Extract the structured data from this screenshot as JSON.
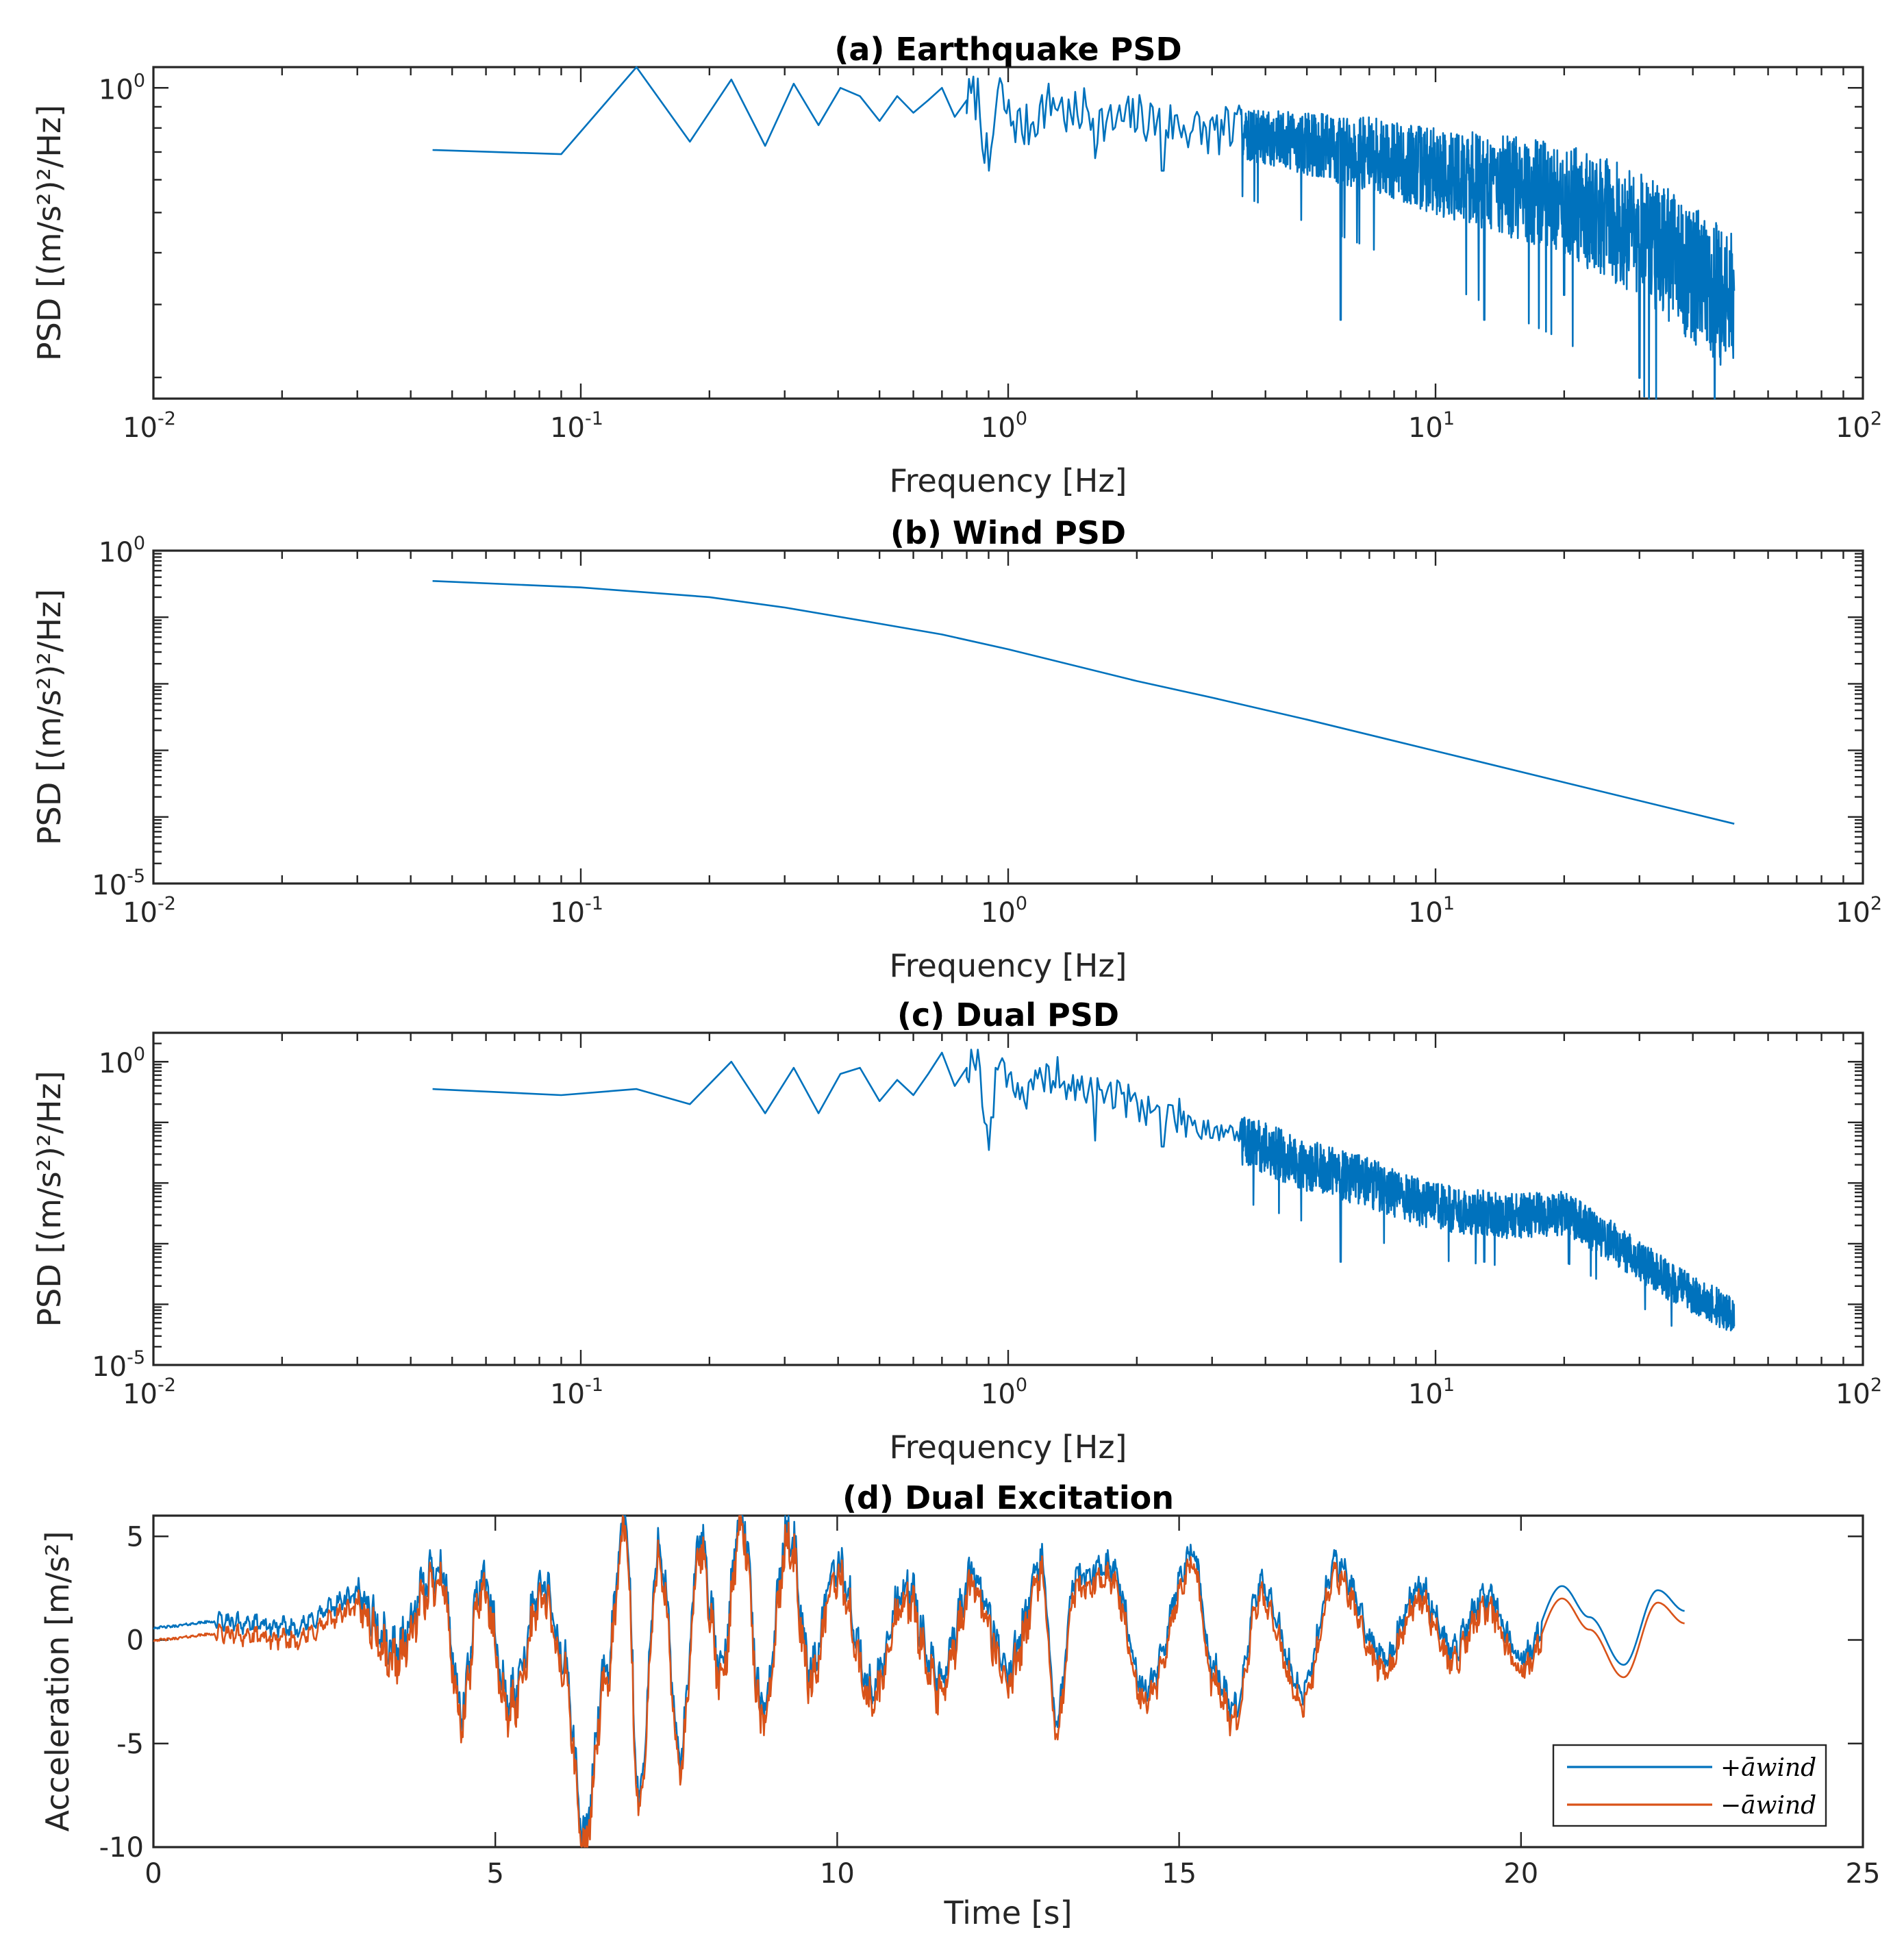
{
  "figure": {
    "panels": [
      {
        "id": "a",
        "title": "(a) Earthquake PSD",
        "xlabel": "Frequency [Hz]",
        "ylabel": "PSD [(m/s²)²/Hz]",
        "xscale": "log",
        "yscale": "log",
        "x_tick_labels": [
          {
            "base": "10",
            "exp": "-2"
          },
          {
            "base": "10",
            "exp": "-1"
          },
          {
            "base": "10",
            "exp": "0"
          },
          {
            "base": "10",
            "exp": "1"
          },
          {
            "base": "10",
            "exp": "2"
          }
        ],
        "y_tick_labels": [
          {
            "base": "10",
            "exp": "0"
          }
        ]
      },
      {
        "id": "b",
        "title": "(b) Wind PSD",
        "xlabel": "Frequency [Hz]",
        "ylabel": "PSD [(m/s²)²/Hz]",
        "xscale": "log",
        "yscale": "log",
        "x_tick_labels": [
          {
            "base": "10",
            "exp": "-2"
          },
          {
            "base": "10",
            "exp": "-1"
          },
          {
            "base": "10",
            "exp": "0"
          },
          {
            "base": "10",
            "exp": "1"
          },
          {
            "base": "10",
            "exp": "2"
          }
        ],
        "y_tick_labels": [
          {
            "base": "10",
            "exp": "0"
          },
          {
            "base": "10",
            "exp": "-5"
          }
        ]
      },
      {
        "id": "c",
        "title": "(c) Dual PSD",
        "xlabel": "Frequency [Hz]",
        "ylabel": "PSD [(m/s²)²/Hz]",
        "xscale": "log",
        "yscale": "log",
        "x_tick_labels": [
          {
            "base": "10",
            "exp": "-2"
          },
          {
            "base": "10",
            "exp": "-1"
          },
          {
            "base": "10",
            "exp": "0"
          },
          {
            "base": "10",
            "exp": "1"
          },
          {
            "base": "10",
            "exp": "2"
          }
        ],
        "y_tick_labels": [
          {
            "base": "10",
            "exp": "0"
          },
          {
            "base": "10",
            "exp": "-5"
          }
        ]
      },
      {
        "id": "d",
        "title": "(d) Dual Excitation",
        "xlabel": "Time [s]",
        "ylabel": "Acceleration [m/s²]",
        "x_tick_labels": [
          "0",
          "5",
          "10",
          "15",
          "20",
          "25"
        ],
        "y_tick_labels": [
          "5",
          "0",
          "-5",
          "-10"
        ],
        "legend": [
          "+āwind",
          "−āwind"
        ]
      }
    ]
  },
  "chart_data": [
    {
      "type": "line",
      "title": "(a) Earthquake PSD",
      "xlabel": "Frequency [Hz]",
      "ylabel": "PSD [(m/s²)²/Hz]",
      "xscale": "log",
      "yscale": "log",
      "xlim": [
        0.01,
        100
      ],
      "ylim_exp": [
        -0.75,
        0.05
      ],
      "grid": false,
      "series": [
        {
          "color": "#0072BD",
          "points": [
            [
              0.045,
              -0.15
            ],
            [
              0.09,
              -0.16
            ],
            [
              0.135,
              0.05
            ],
            [
              0.18,
              -0.13
            ],
            [
              0.225,
              0.02
            ],
            [
              0.27,
              -0.14
            ],
            [
              0.315,
              0.01
            ],
            [
              0.36,
              -0.09
            ],
            [
              0.405,
              0.0
            ],
            [
              0.45,
              -0.02
            ],
            [
              0.5,
              -0.08
            ],
            [
              0.55,
              -0.02
            ],
            [
              0.6,
              -0.06
            ],
            [
              0.65,
              -0.03
            ],
            [
              0.7,
              0.0
            ],
            [
              0.75,
              -0.07
            ],
            [
              0.8,
              -0.03
            ],
            [
              0.85,
              -0.02
            ],
            [
              0.9,
              -0.2
            ],
            [
              0.95,
              0.0
            ],
            [
              1.0,
              -0.07
            ],
            [
              1.1,
              -0.1
            ],
            [
              1.2,
              -0.05
            ],
            [
              1.3,
              -0.03
            ],
            [
              1.4,
              -0.08
            ],
            [
              1.5,
              -0.05
            ],
            [
              1.7,
              -0.09
            ],
            [
              2.0,
              -0.07
            ],
            [
              2.5,
              -0.09
            ],
            [
              3.0,
              -0.11
            ],
            [
              3.5,
              -0.1
            ]
          ],
          "noise": [
            {
              "x0": 0.8,
              "x1": 3.5,
              "dips": [
                [
                  0.9,
                  -0.2
                ],
                [
                  1.6,
                  -0.17
                ],
                [
                  2.3,
                  -0.2
                ]
              ]
            },
            {
              "x0": 3.5,
              "x1": 50,
              "dips": [
                [
                  6.0,
                  -0.56
                ],
                [
                  13.0,
                  -0.56
                ],
                [
                  20.0,
                  -0.5
                ],
                [
                  30.0,
                  -0.7
                ],
                [
                  45.0,
                  -0.76
                ]
              ]
            }
          ],
          "trend": [
            [
              3.5,
              -0.11
            ],
            [
              7.0,
              -0.16
            ],
            [
              10.0,
              -0.2
            ],
            [
              15.0,
              -0.24
            ],
            [
              20.0,
              -0.27
            ],
            [
              30.0,
              -0.35
            ],
            [
              40.0,
              -0.45
            ],
            [
              50.0,
              -0.52
            ]
          ]
        }
      ]
    },
    {
      "type": "line",
      "title": "(b) Wind PSD",
      "xlabel": "Frequency [Hz]",
      "ylabel": "PSD [(m/s²)²/Hz]",
      "xscale": "log",
      "yscale": "log",
      "xlim": [
        0.01,
        100
      ],
      "ylim": [
        1e-05,
        1
      ],
      "grid": false,
      "series": [
        {
          "color": "#0072BD",
          "x": [
            0.045,
            0.1,
            0.2,
            0.3,
            0.5,
            0.7,
            1.0,
            2.0,
            3.0,
            5.0,
            10.0,
            20.0,
            50.0
          ],
          "y": [
            0.35,
            0.28,
            0.2,
            0.14,
            0.08,
            0.055,
            0.033,
            0.011,
            0.0062,
            0.0029,
            0.00098,
            0.00033,
            7.9e-05
          ]
        }
      ]
    },
    {
      "type": "line",
      "title": "(c) Dual PSD",
      "xlabel": "Frequency [Hz]",
      "ylabel": "PSD [(m/s²)²/Hz]",
      "xscale": "log",
      "yscale": "log",
      "xlim": [
        0.01,
        100
      ],
      "ylim": [
        1e-05,
        3
      ],
      "grid": false,
      "series": [
        {
          "color": "#0072BD",
          "points": [
            [
              0.045,
              -0.45
            ],
            [
              0.09,
              -0.55
            ],
            [
              0.135,
              -0.45
            ],
            [
              0.18,
              -0.7
            ],
            [
              0.225,
              0.0
            ],
            [
              0.27,
              -0.85
            ],
            [
              0.315,
              -0.1
            ],
            [
              0.36,
              -0.85
            ],
            [
              0.405,
              -0.2
            ],
            [
              0.45,
              -0.1
            ],
            [
              0.5,
              -0.65
            ],
            [
              0.55,
              -0.3
            ],
            [
              0.6,
              -0.55
            ],
            [
              0.65,
              -0.2
            ],
            [
              0.7,
              0.15
            ],
            [
              0.75,
              -0.4
            ],
            [
              0.8,
              -0.1
            ],
            [
              0.85,
              0.2
            ],
            [
              0.9,
              -1.45
            ],
            [
              0.95,
              0.1
            ],
            [
              1.0,
              -0.2
            ],
            [
              1.1,
              -0.6
            ],
            [
              1.2,
              -0.3
            ],
            [
              1.3,
              -0.2
            ],
            [
              1.4,
              -0.5
            ],
            [
              1.6,
              -0.4
            ],
            [
              2.0,
              -0.7
            ],
            [
              2.5,
              -0.9
            ],
            [
              3.0,
              -1.1
            ],
            [
              3.5,
              -1.2
            ]
          ],
          "noise": [
            {
              "x0": 0.8,
              "x1": 3.5,
              "dips": [
                [
                  1.6,
                  -1.3
                ],
                [
                  2.3,
                  -1.4
                ]
              ]
            },
            {
              "x0": 3.5,
              "x1": 50,
              "dips": [
                [
                  6.0,
                  -3.3
                ],
                [
                  13.0,
                  -3.3
                ]
              ]
            }
          ],
          "trend": [
            [
              3.5,
              -1.3
            ],
            [
              5.0,
              -1.7
            ],
            [
              7.0,
              -2.0
            ],
            [
              10.0,
              -2.4
            ],
            [
              15.0,
              -2.55
            ],
            [
              20.0,
              -2.5
            ],
            [
              25.0,
              -2.9
            ],
            [
              35.0,
              -3.6
            ],
            [
              50.0,
              -4.2
            ]
          ]
        }
      ]
    },
    {
      "type": "line",
      "title": "(d) Dual Excitation",
      "xlabel": "Time [s]",
      "ylabel": "Acceleration [m/s²]",
      "xlim": [
        0,
        25
      ],
      "ylim": [
        -10,
        6
      ],
      "grid": false,
      "legend_position": "bottom-right",
      "series": [
        {
          "name": "+āwind",
          "color": "#0072BD",
          "offset": 0.6
        },
        {
          "name": "−āwind",
          "color": "#D95319",
          "offset": 0.0
        }
      ],
      "signal_peaks": [
        [
          0,
          0.0
        ],
        [
          1.0,
          0.3
        ],
        [
          2.0,
          0.0
        ],
        [
          3.0,
          1.5
        ],
        [
          3.5,
          -1.0
        ],
        [
          4.2,
          3.0
        ],
        [
          4.5,
          -4.0
        ],
        [
          4.8,
          2.5
        ],
        [
          5.2,
          -3.5
        ],
        [
          5.7,
          2.0
        ],
        [
          6.0,
          -1.5
        ],
        [
          6.3,
          -10.0
        ],
        [
          6.6,
          -2.5
        ],
        [
          6.9,
          5.2
        ],
        [
          7.1,
          -8.0
        ],
        [
          7.4,
          4.0
        ],
        [
          7.7,
          -6.0
        ],
        [
          8.0,
          4.2
        ],
        [
          8.3,
          -2.0
        ],
        [
          8.6,
          5.6
        ],
        [
          8.9,
          -4.0
        ],
        [
          9.3,
          4.8
        ],
        [
          9.6,
          -2.0
        ],
        [
          10.0,
          3.0
        ],
        [
          10.5,
          -3.0
        ],
        [
          11.0,
          2.0
        ],
        [
          11.5,
          -2.5
        ],
        [
          12.0,
          2.5
        ],
        [
          12.5,
          -2.0
        ],
        [
          13.0,
          3.0
        ],
        [
          13.2,
          -4.5
        ],
        [
          13.5,
          2.5
        ],
        [
          14.0,
          3.0
        ],
        [
          14.5,
          -3.0
        ],
        [
          15.2,
          3.5
        ],
        [
          15.5,
          -2.0
        ],
        [
          15.8,
          -4.0
        ],
        [
          16.2,
          2.0
        ],
        [
          16.8,
          -3.0
        ],
        [
          17.3,
          3.0
        ],
        [
          18.0,
          -1.5
        ],
        [
          18.5,
          2.0
        ],
        [
          19.0,
          -1.0
        ],
        [
          19.5,
          1.5
        ],
        [
          20.0,
          -1.5
        ],
        [
          20.6,
          2.0
        ],
        [
          21.0,
          0.5
        ],
        [
          21.5,
          -1.8
        ],
        [
          22.0,
          1.8
        ],
        [
          22.4,
          0.8
        ]
      ]
    }
  ]
}
